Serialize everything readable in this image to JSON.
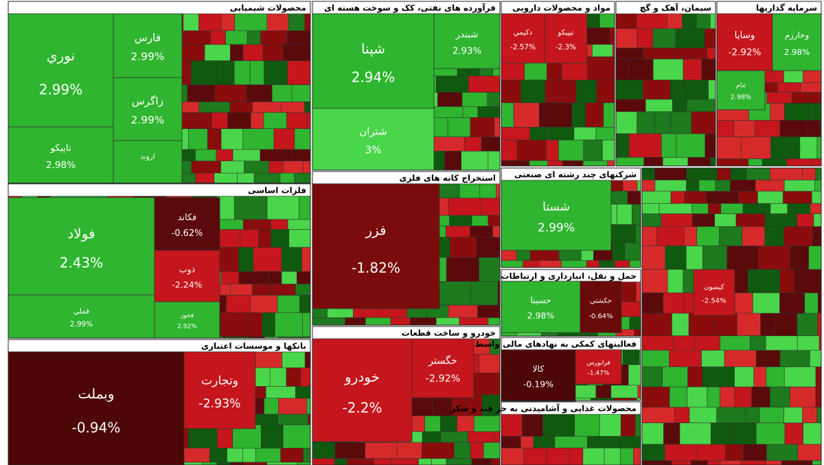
{
  "sectors": [
    {
      "title": "محصولات شیمیایی",
      "tiles": [
        {
          "name": "نوري",
          "change": "2.99%",
          "color": "#2fb52f"
        },
        {
          "name": "تاپيكو",
          "change": "2.98%",
          "color": "#2fb52f"
        },
        {
          "name": "فارس",
          "change": "2.99%",
          "color": "#2fb52f"
        },
        {
          "name": "زاگرس",
          "change": "2.99%",
          "color": "#2fb52f"
        },
        {
          "name": "اروند",
          "color": "#2fb52f"
        }
      ]
    },
    {
      "title": "فرآورده های نفتی، کک و سوخت هسته ای",
      "tiles": [
        {
          "name": "شپنا",
          "change": "2.94%",
          "color": "#2fb52f"
        },
        {
          "name": "شبندر",
          "change": "2.93%",
          "color": "#2fb52f"
        },
        {
          "name": "شتران",
          "change": "3%",
          "color": "#4ad64a"
        }
      ]
    },
    {
      "title": "مواد و محصولات دارویی",
      "tiles": [
        {
          "name": "دكيمي",
          "change": "-2.57%",
          "color": "#c4161c"
        },
        {
          "name": "تيپيكو",
          "change": "-2.3%",
          "color": "#c4161c"
        }
      ]
    },
    {
      "title": "سیمان، آهک و گچ",
      "tiles": []
    },
    {
      "title": "سرمایه گذاریها",
      "tiles": [
        {
          "name": "وساپا",
          "change": "-2.92%",
          "color": "#c4161c"
        },
        {
          "name": "وخارزم",
          "change": "2.98%",
          "color": "#2fb52f"
        },
        {
          "name": "ثنام",
          "change": "2.98%",
          "color": "#2fb52f"
        }
      ]
    },
    {
      "title": "فلزات اساسی",
      "tiles": [
        {
          "name": "فولاد",
          "change": "2.43%",
          "color": "#2fb52f"
        },
        {
          "name": "فملي",
          "change": "2.99%",
          "color": "#2fb52f"
        },
        {
          "name": "فكاند",
          "change": "-0.62%",
          "color": "#5a0a0a"
        },
        {
          "name": "ذوب",
          "change": "-2.24%",
          "color": "#c4161c"
        },
        {
          "name": "فخوز",
          "change": "2.92%",
          "color": "#2fb52f"
        }
      ]
    },
    {
      "title": "استخراج کانه های فلزی",
      "tiles": [
        {
          "name": "فزر",
          "change": "-1.82%",
          "color": "#7a0c0c"
        }
      ]
    },
    {
      "title": "بانکها و موسسات اعتباری",
      "tiles": [
        {
          "name": "وبملت",
          "change": "-0.94%",
          "color": "#4d0707"
        },
        {
          "name": "وتجارت",
          "change": "-2.93%",
          "color": "#c4161c"
        }
      ]
    },
    {
      "title": "خودرو و ساخت قطعات",
      "tiles": [
        {
          "name": "خودرو",
          "change": "-2.2%",
          "color": "#c4161c"
        },
        {
          "name": "خگستر",
          "change": "-2.92%",
          "color": "#c4161c"
        }
      ]
    },
    {
      "title": "شرکتهای چند رشته ای صنعتی",
      "tiles": [
        {
          "name": "شستا",
          "change": "2.99%",
          "color": "#2fb52f"
        }
      ]
    },
    {
      "title": "حمل و نقل، انبارداری و ارتباطات",
      "tiles": [
        {
          "name": "حسينا",
          "change": "2.98%",
          "color": "#2fb52f"
        },
        {
          "name": "حكشتي",
          "change": "-0.64%",
          "color": "#6a0a0a"
        }
      ]
    },
    {
      "title": "فعالیتهای کمکی به نهادهای مالی واسط",
      "tiles": [
        {
          "name": "كالا",
          "change": "-0.19%",
          "color": "#4d0707"
        },
        {
          "name": "فرابورس",
          "change": "-1.47%",
          "color": "#c4161c"
        }
      ]
    },
    {
      "title": "محصولات غذایی و آشامیدنی به جز قند و شکر",
      "tiles": []
    },
    {
      "tiles": [
        {
          "name": "كيسون",
          "change": "-2.54%",
          "color": "#c4161c"
        }
      ]
    }
  ]
}
